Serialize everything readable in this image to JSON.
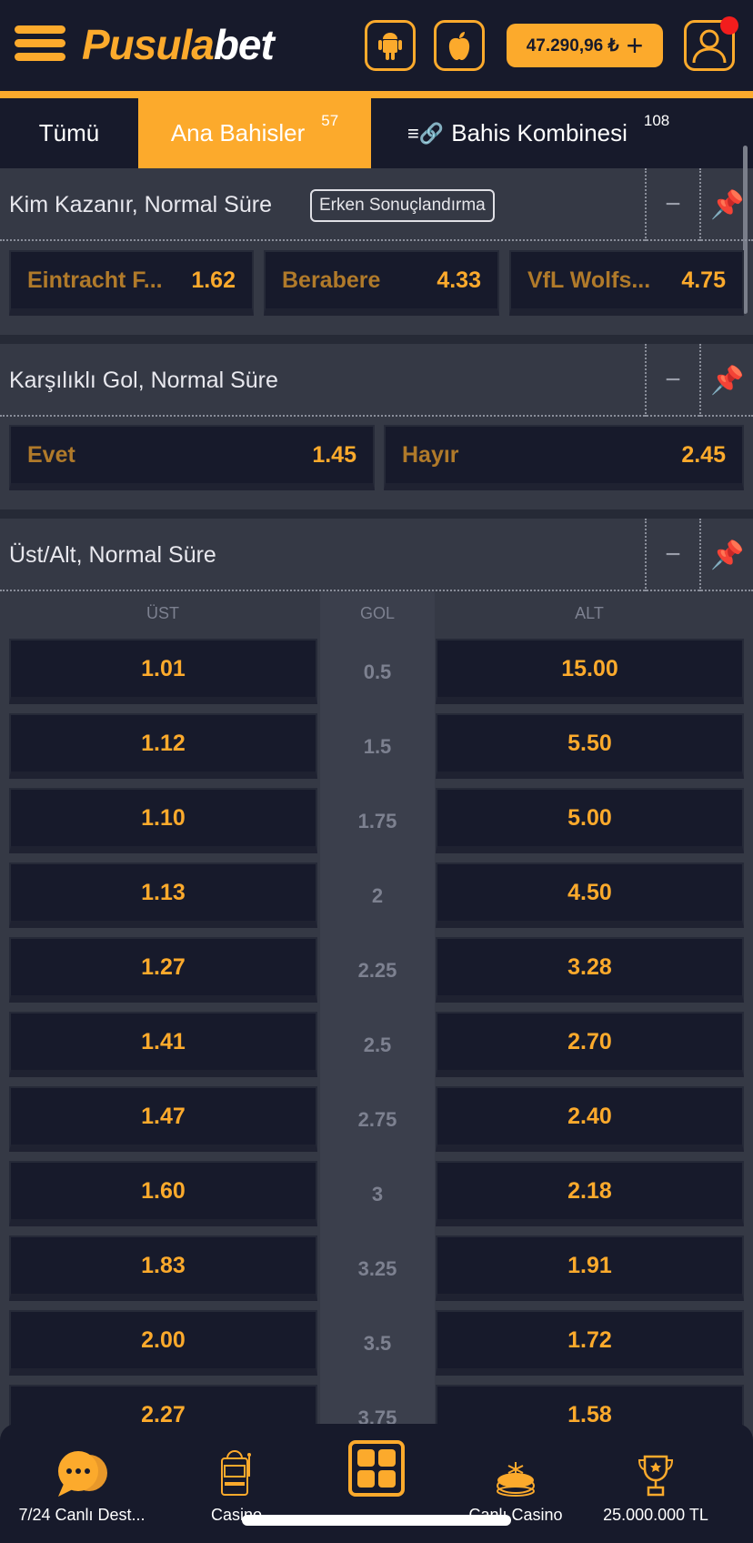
{
  "header": {
    "logo_left": "Pusula",
    "logo_right": "bet",
    "balance": "47.290,96 ₺",
    "icons": [
      "menu-icon",
      "android-icon",
      "apple-icon",
      "plus-icon",
      "user-icon"
    ]
  },
  "tabs": [
    {
      "label": "Tümü"
    },
    {
      "label": "Ana Bahisler",
      "count": "57"
    },
    {
      "label": "Bahis Kombinesi",
      "count": "108"
    }
  ],
  "markets": [
    {
      "title": "Kim Kazanır, Normal Süre",
      "badge": "Erken Sonuçlandırma",
      "odds": [
        {
          "name": "Eintracht F...",
          "value": "1.62"
        },
        {
          "name": "Berabere",
          "value": "4.33"
        },
        {
          "name": "VfL Wolfs...",
          "value": "4.75"
        }
      ]
    },
    {
      "title": "Karşılıklı Gol, Normal Süre",
      "odds": [
        {
          "name": "Evet",
          "value": "1.45"
        },
        {
          "name": "Hayır",
          "value": "2.45"
        }
      ]
    },
    {
      "title": "Üst/Alt, Normal Süre",
      "columns": [
        "ÜST",
        "GOL",
        "ALT"
      ],
      "rows": [
        [
          "1.01",
          "0.5",
          "15.00"
        ],
        [
          "1.12",
          "1.5",
          "5.50"
        ],
        [
          "1.10",
          "1.75",
          "5.00"
        ],
        [
          "1.13",
          "2",
          "4.50"
        ],
        [
          "1.27",
          "2.25",
          "3.28"
        ],
        [
          "1.41",
          "2.5",
          "2.70"
        ],
        [
          "1.47",
          "2.75",
          "2.40"
        ],
        [
          "1.60",
          "3",
          "2.18"
        ],
        [
          "1.83",
          "3.25",
          "1.91"
        ],
        [
          "2.00",
          "3.5",
          "1.72"
        ],
        [
          "2.27",
          "3.75",
          "1.58"
        ]
      ]
    }
  ],
  "bottom_nav": [
    {
      "label": "7/24 Canlı Dest..."
    },
    {
      "label": "Casino"
    },
    {
      "label": ""
    },
    {
      "label": "Canlı Casino"
    },
    {
      "label": "25.000.000 TL"
    }
  ],
  "colors": {
    "accent": "#fcaa2c",
    "background": "#171a2b",
    "panel": "#353945"
  }
}
